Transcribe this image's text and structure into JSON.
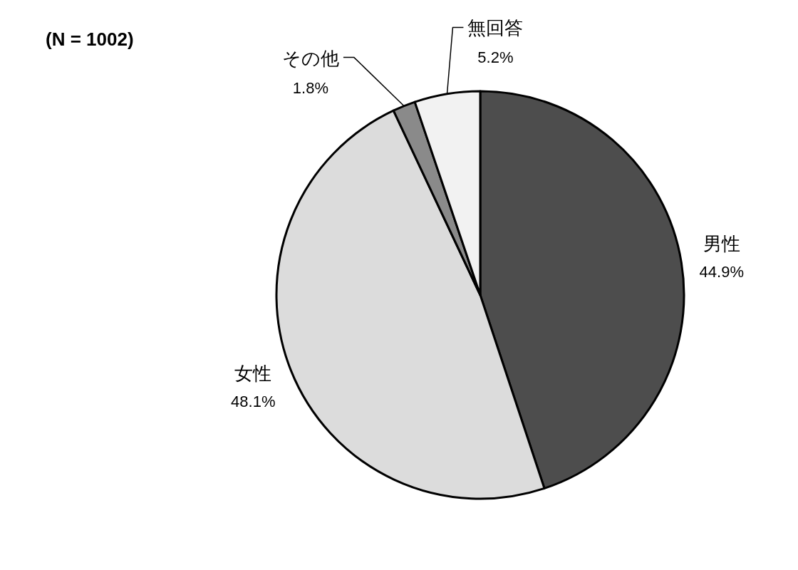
{
  "chart_data": {
    "type": "pie",
    "title": "(N = 1002)",
    "categories": [
      "男性",
      "女性",
      "その他",
      "無回答"
    ],
    "values": [
      44.9,
      48.1,
      1.8,
      5.2
    ],
    "colors": [
      "#4d4d4d",
      "#dcdcdc",
      "#8a8a8a",
      "#f2f2f2"
    ],
    "value_labels": [
      "44.9%",
      "48.1%",
      "1.8%",
      "5.2%"
    ]
  }
}
